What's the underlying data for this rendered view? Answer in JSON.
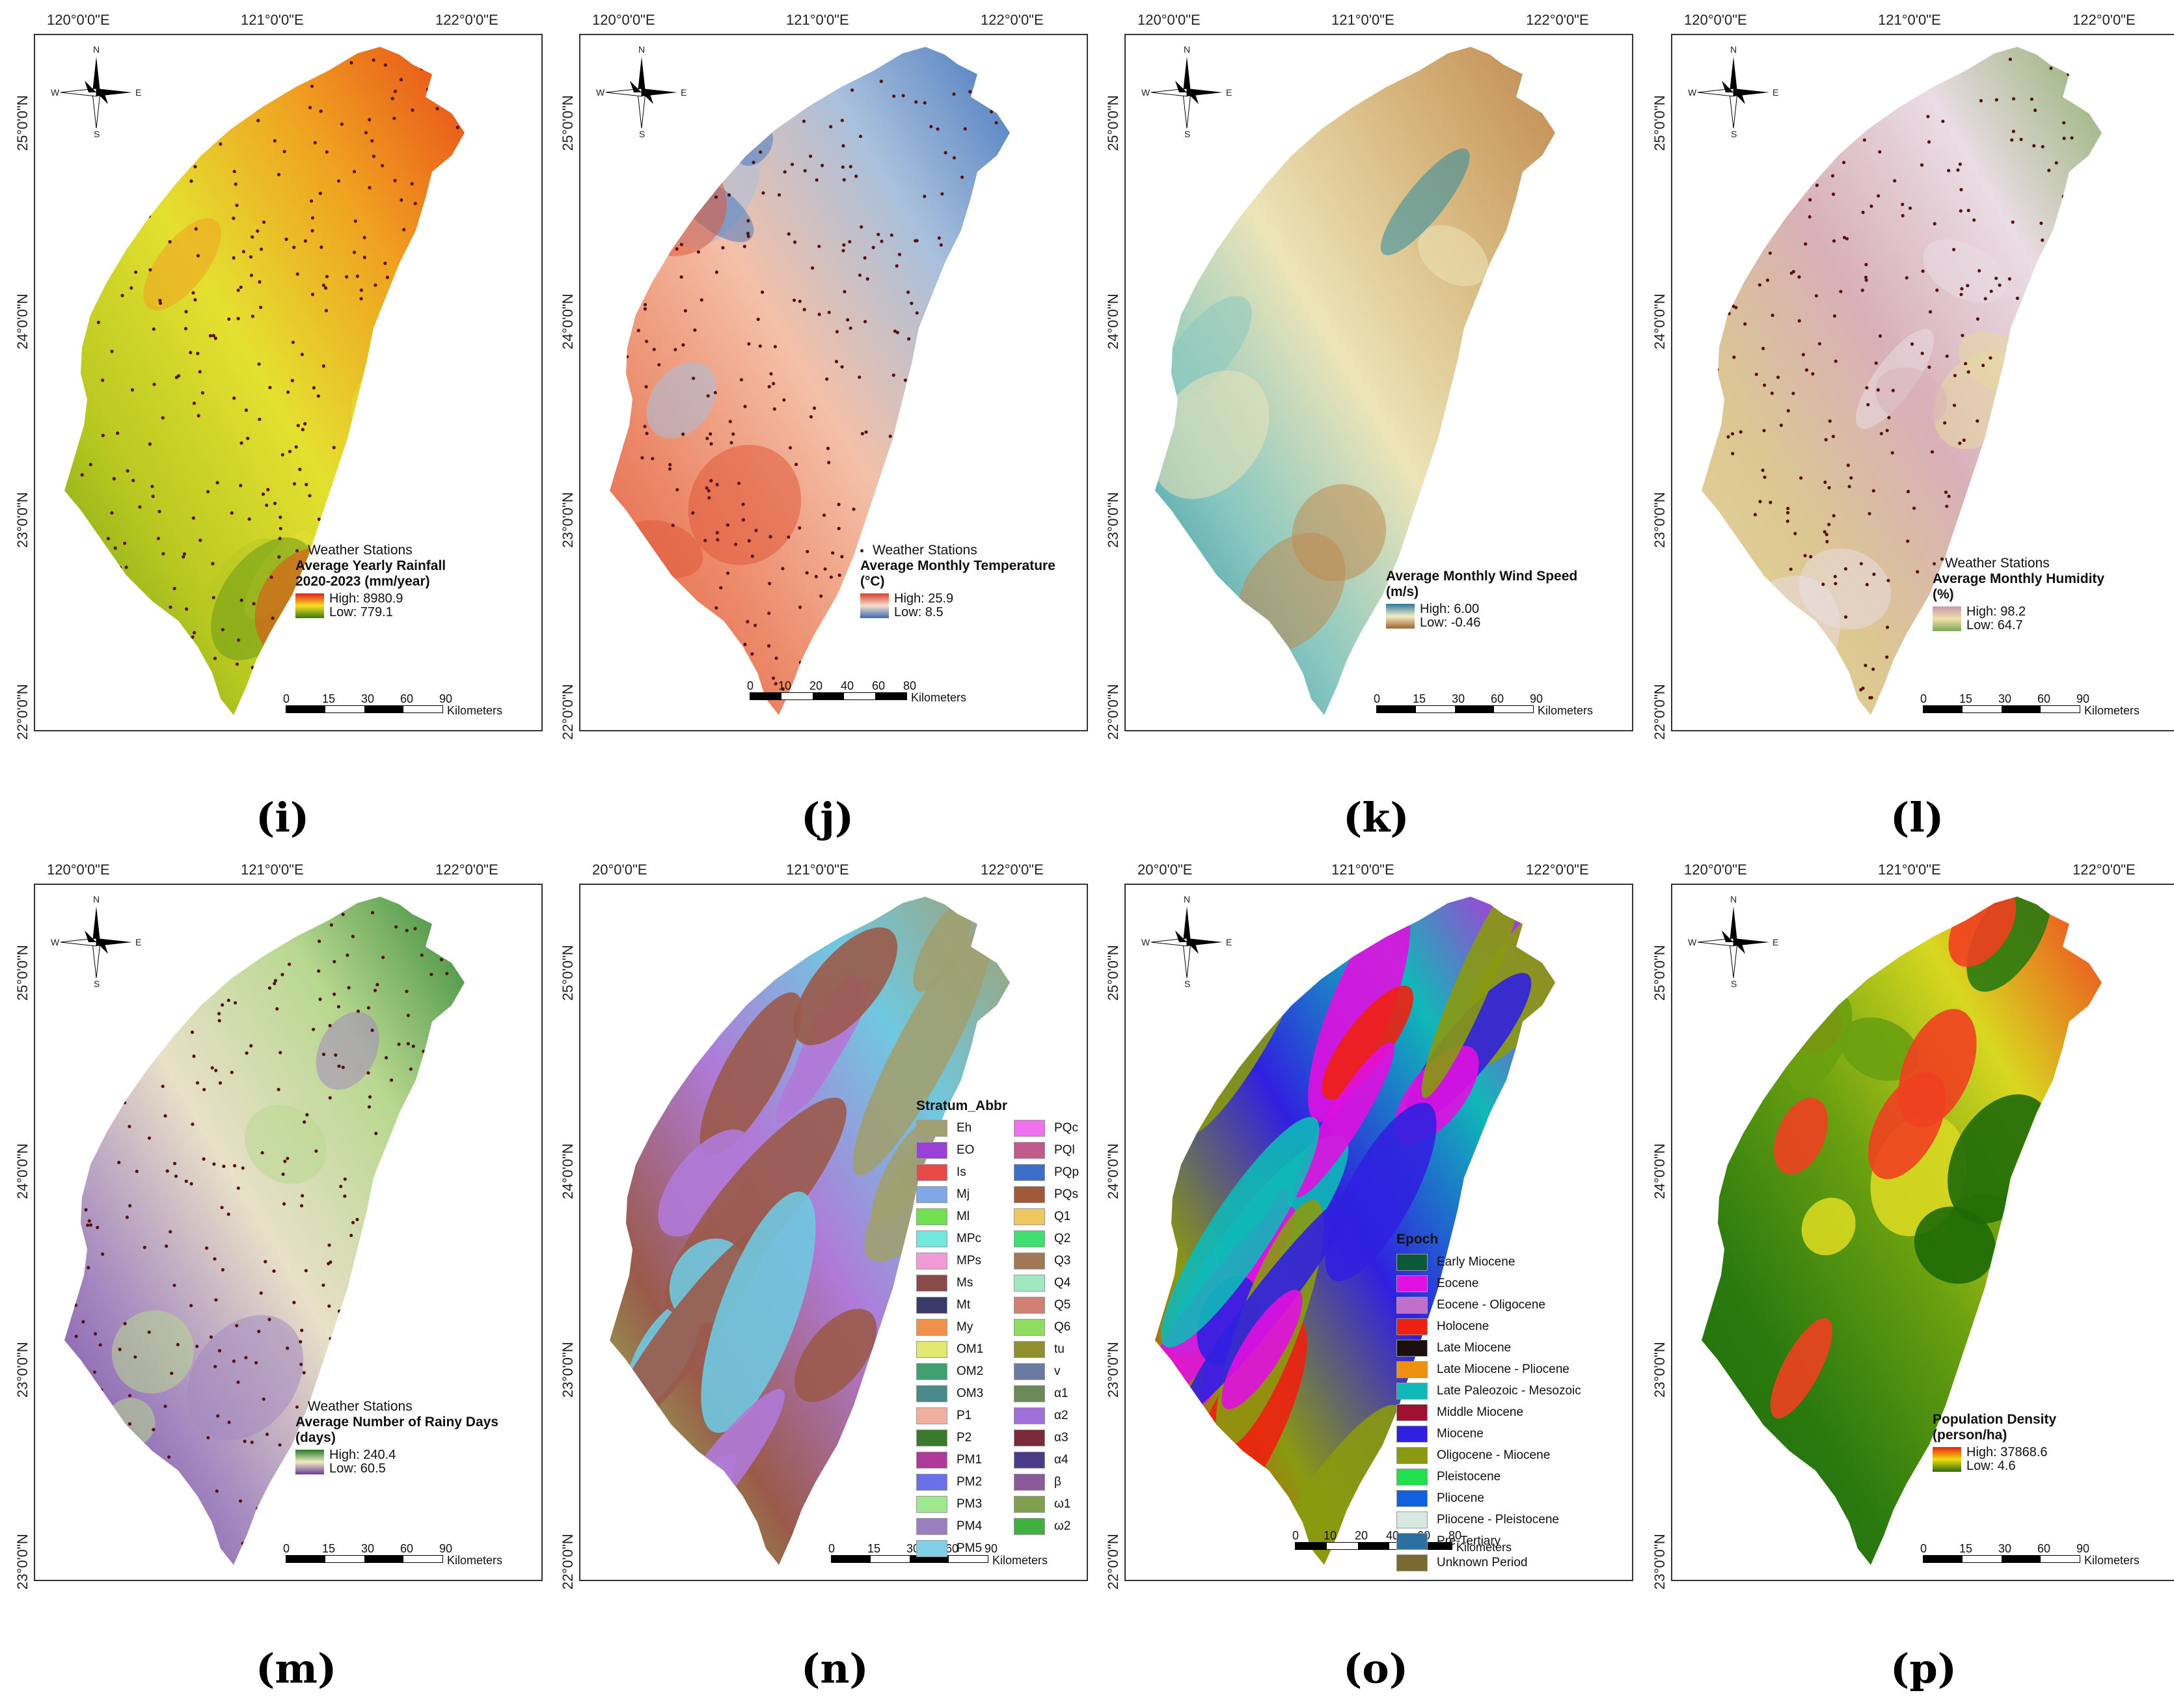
{
  "panels": [
    {
      "id": "i",
      "caption": "(i)",
      "lon_labels": [
        "120°0'0\"E",
        "121°0'0\"E",
        "122°0'0\"E"
      ],
      "lat_labels": [
        "25°0'0\"N",
        "24°0'0\"N",
        "23°0'0\"N",
        "22°0'0\"N"
      ],
      "stations_label": "Weather Stations",
      "legend_title": "Average Yearly Rainfall",
      "legend_title2": "2020-2023 (mm/year)",
      "high": "High: 8980.9",
      "low": "Low: 779.1",
      "scale_ticks": [
        "0",
        "15",
        "30",
        "60",
        "90"
      ],
      "scale_unit": "Kilometers",
      "ramp": [
        "#e02020",
        "#f8e020",
        "#3a7a10"
      ],
      "map_colors": [
        "#6c9a18",
        "#b8c820",
        "#e4e030",
        "#f0a020",
        "#e84a1a"
      ]
    },
    {
      "id": "j",
      "caption": "(j)",
      "lon_labels": [
        "120°0'0\"E",
        "121°0'0\"E",
        "122°0'0\"E"
      ],
      "lat_labels": [
        "25°0'0\"N",
        "24°0'0\"N",
        "23°0'0\"N",
        "22°0'0\"N"
      ],
      "stations_label": "Weather Stations",
      "legend_title": "Average Monthly Temperature",
      "legend_title2": "(°C)",
      "high": "High: 25.9",
      "low": "Low: 8.5",
      "scale_ticks": [
        "0",
        "10",
        "20",
        "40",
        "60",
        "80"
      ],
      "scale_unit": "Kilometers",
      "ramp": [
        "#d4402a",
        "#f4e0d0",
        "#3a6ab4"
      ],
      "map_colors": [
        "#e05a3a",
        "#ec8a6a",
        "#f4c0a8",
        "#a8c0dc",
        "#4a7ac0"
      ]
    },
    {
      "id": "k",
      "caption": "(k)",
      "lon_labels": [
        "120°0'0\"E",
        "121°0'0\"E",
        "122°0'0\"E"
      ],
      "lat_labels": [
        "25°0'0\"N",
        "24°0'0\"N",
        "23°0'0\"N",
        "22°0'0\"N"
      ],
      "stations_label": "",
      "legend_title": "Average Monthly Wind Speed",
      "legend_title2": "(m/s)",
      "high": "High: 6.00",
      "low": "Low: -0.46",
      "scale_ticks": [
        "0",
        "15",
        "30",
        "60",
        "90"
      ],
      "scale_unit": "Kilometers",
      "ramp": [
        "#2a7a9a",
        "#f4ecc8",
        "#a0642a"
      ],
      "map_colors": [
        "#2a8aa0",
        "#8ac8c0",
        "#ece4b8",
        "#d8b880",
        "#c08a50"
      ]
    },
    {
      "id": "l",
      "caption": "(l)",
      "lon_labels": [
        "120°0'0\"E",
        "121°0'0\"E",
        "122°0'0\"E"
      ],
      "lat_labels": [
        "25°0'0\"N",
        "24°0'0\"N",
        "23°0'0\"N",
        "22°0'0\"N"
      ],
      "stations_label": "Weather Stations",
      "legend_title": "Average Monthly Humidity",
      "legend_title2": "(%)",
      "high": "High: 98.2",
      "low": "Low: 64.7",
      "scale_ticks": [
        "0",
        "15",
        "30",
        "60",
        "90"
      ],
      "scale_unit": "Kilometers",
      "ramp": [
        "#c89ab0",
        "#f0e0a8",
        "#7aa85a"
      ],
      "map_colors": [
        "#e8d8a0",
        "#dcc890",
        "#d8b0b8",
        "#eadce4",
        "#90b070"
      ]
    },
    {
      "id": "m",
      "caption": "(m)",
      "lon_labels": [
        "120°0'0\"E",
        "121°0'0\"E",
        "122°0'0\"E"
      ],
      "lat_labels": [
        "25°0'0\"N",
        "24°0'0\"N",
        "23°0'0\"N",
        "23°0'0\"N"
      ],
      "stations_label": "Weather Stations",
      "legend_title": "Average Number of Rainy Days",
      "legend_title2": "(days)",
      "high": "High: 240.4",
      "low": "Low: 60.5",
      "scale_ticks": [
        "0",
        "15",
        "30",
        "60",
        "90"
      ],
      "scale_unit": "Kilometers",
      "ramp": [
        "#2a7a2a",
        "#f0ecc0",
        "#6a3a9a"
      ],
      "map_colors": [
        "#6a40a0",
        "#a488c0",
        "#e8e0c8",
        "#b8d890",
        "#3a8a3a"
      ]
    },
    {
      "id": "n",
      "caption": "(n)",
      "lon_labels": [
        "20°0'0\"E",
        "121°0'0\"E",
        "122°0'0\"E"
      ],
      "lat_labels": [
        "25°0'0\"N",
        "24°0'0\"N",
        "23°0'0\"N",
        "22°0'0\"N"
      ],
      "stations_label": "",
      "legend_title": "",
      "legend_title2": "",
      "high": "",
      "low": "",
      "scale_ticks": [
        "0",
        "15",
        "30",
        "60",
        "90"
      ],
      "scale_unit": "Kilometers",
      "ramp": [],
      "map_colors": [
        "#8edb5a",
        "#9a5a4a",
        "#b07ad8",
        "#70c8e0",
        "#a0a070"
      ]
    },
    {
      "id": "o",
      "caption": "(o)",
      "lon_labels": [
        "20°0'0\"E",
        "121°0'0\"E",
        "122°0'0\"E"
      ],
      "lat_labels": [
        "25°0'0\"N",
        "24°0'0\"N",
        "23°0'0\"N",
        "22°0'0\"N"
      ],
      "stations_label": "",
      "legend_title": "",
      "legend_title2": "",
      "high": "",
      "low": "",
      "scale_ticks": [
        "0",
        "10",
        "20",
        "40",
        "60",
        "80"
      ],
      "scale_unit": "Kilometers",
      "ramp": [],
      "map_colors": [
        "#f02010",
        "#8a9a10",
        "#3020e0",
        "#10b8b8",
        "#e010e0"
      ]
    },
    {
      "id": "p",
      "caption": "(p)",
      "lon_labels": [
        "120°0'0\"E",
        "121°0'0\"E",
        "122°0'0\"E"
      ],
      "lat_labels": [
        "25°0'0\"N",
        "24°0'0\"N",
        "23°0'0\"N",
        "23°0'0\"N"
      ],
      "stations_label": "",
      "legend_title": "Population Density",
      "legend_title2": "(person/ha)",
      "high": "High: 37868.6",
      "low": "Low: 4.6",
      "scale_ticks": [
        "0",
        "15",
        "30",
        "60",
        "90"
      ],
      "scale_unit": "Kilometers",
      "ramp": [
        "#e82010",
        "#f0e010",
        "#2a6a10"
      ],
      "map_colors": [
        "#1e6a08",
        "#2a7a10",
        "#6aa010",
        "#d8d820",
        "#f04020"
      ]
    }
  ],
  "compass": {
    "n": "N",
    "s": "S",
    "e": "E",
    "w": "W"
  },
  "stratum": {
    "title": "Stratum_Abbr",
    "items": [
      {
        "label": "Eh",
        "color": "#a0a070"
      },
      {
        "label": "PQc",
        "color": "#f070f0"
      },
      {
        "label": "EO",
        "color": "#9a40d8"
      },
      {
        "label": "PQl",
        "color": "#c05a8a"
      },
      {
        "label": "Is",
        "color": "#e84a4a"
      },
      {
        "label": "PQp",
        "color": "#3a70c8"
      },
      {
        "label": "Mj",
        "color": "#80a8e8"
      },
      {
        "label": "PQs",
        "color": "#a05a3a"
      },
      {
        "label": "Ml",
        "color": "#70e050"
      },
      {
        "label": "Q1",
        "color": "#f0c860"
      },
      {
        "label": "MPc",
        "color": "#70e8e0"
      },
      {
        "label": "Q2",
        "color": "#40e070"
      },
      {
        "label": "MPs",
        "color": "#f09ad8"
      },
      {
        "label": "Q3",
        "color": "#a07858"
      },
      {
        "label": "Ms",
        "color": "#8a4a4a"
      },
      {
        "label": "Q4",
        "color": "#a0e8c0"
      },
      {
        "label": "Mt",
        "color": "#3a3a6a"
      },
      {
        "label": "Q5",
        "color": "#d08070"
      },
      {
        "label": "My",
        "color": "#f0904a"
      },
      {
        "label": "Q6",
        "color": "#90dc60"
      },
      {
        "label": "OM1",
        "color": "#e0e870"
      },
      {
        "label": "tu",
        "color": "#909030"
      },
      {
        "label": "OM2",
        "color": "#40a070"
      },
      {
        "label": "v",
        "color": "#6a7aa0"
      },
      {
        "label": "OM3",
        "color": "#4a8a8a"
      },
      {
        "label": "α1",
        "color": "#6a8a5a"
      },
      {
        "label": "P1",
        "color": "#f0b0a0"
      },
      {
        "label": "α2",
        "color": "#a070d8"
      },
      {
        "label": "P2",
        "color": "#3a7a2a"
      },
      {
        "label": "α3",
        "color": "#7a2a3a"
      },
      {
        "label": "PM1",
        "color": "#b03a9a"
      },
      {
        "label": "α4",
        "color": "#4a3a8a"
      },
      {
        "label": "PM2",
        "color": "#6a70e8"
      },
      {
        "label": "β",
        "color": "#8a5a9a"
      },
      {
        "label": "PM3",
        "color": "#a0e890"
      },
      {
        "label": "ω1",
        "color": "#80a050"
      },
      {
        "label": "PM4",
        "color": "#9a80c0"
      },
      {
        "label": "ω2",
        "color": "#40b040"
      },
      {
        "label": "PM5",
        "color": "#80d0e8"
      }
    ]
  },
  "epoch": {
    "title": "Epoch",
    "items": [
      {
        "label": "Early Miocene",
        "color": "#0a5a3a"
      },
      {
        "label": "Eocene",
        "color": "#e010e0"
      },
      {
        "label": "Eocene - Oligocene",
        "color": "#c070c8"
      },
      {
        "label": "Holocene",
        "color": "#f02010"
      },
      {
        "label": "Late Miocene",
        "color": "#1a1010"
      },
      {
        "label": "Late Miocene - Pliocene",
        "color": "#f09010"
      },
      {
        "label": "Late Paleozoic - Mesozoic",
        "color": "#10b8b8"
      },
      {
        "label": "Middle Miocene",
        "color": "#a01030"
      },
      {
        "label": "Miocene",
        "color": "#3020e0"
      },
      {
        "label": "Oligocene - Miocene",
        "color": "#8a9a10"
      },
      {
        "label": "Pleistocene",
        "color": "#20e050"
      },
      {
        "label": "Pliocene",
        "color": "#1060e0"
      },
      {
        "label": "Pliocene - Pleistocene",
        "color": "#d8e8e0"
      },
      {
        "label": "Pre-Tertiary",
        "color": "#2a70a0"
      },
      {
        "label": "Unknown Period",
        "color": "#7a6a30"
      }
    ]
  }
}
